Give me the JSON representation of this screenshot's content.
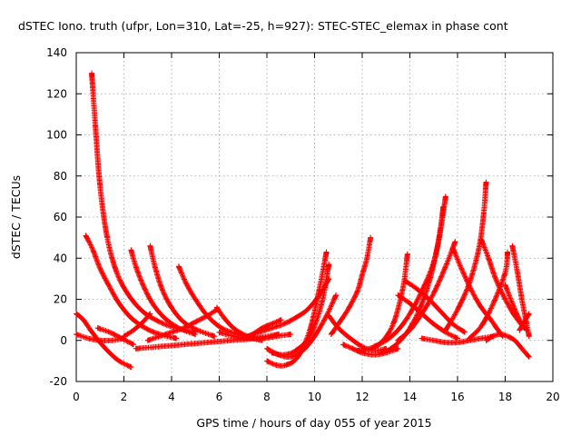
{
  "chart_data": {
    "type": "scatter",
    "title": "dSTEC Iono. truth (ufpr, Lon=310, Lat=-25, h=927): STEC-STEC_elemax in phase cont",
    "xlabel": "GPS time / hours of day 055 of year 2015",
    "ylabel": "dSTEC  / TECUs",
    "xlim": [
      0,
      20
    ],
    "ylim": [
      -20,
      140
    ],
    "xticks": [
      0,
      2,
      4,
      6,
      8,
      10,
      12,
      14,
      16,
      18,
      20
    ],
    "yticks": [
      -20,
      0,
      20,
      40,
      60,
      80,
      100,
      120,
      140
    ],
    "grid": true,
    "marker": "plus",
    "color": "#ff0000",
    "series": [
      {
        "x": [
          0.65,
          0.8,
          1.0,
          1.3,
          1.7,
          2.2,
          2.8,
          3.5,
          4.2,
          5.0
        ],
        "y": [
          130,
          105,
          75,
          50,
          33,
          22,
          14,
          9,
          6,
          4
        ]
      },
      {
        "x": [
          0.4,
          0.7,
          1.0,
          1.4,
          1.8,
          2.3,
          2.9,
          3.5,
          4.2
        ],
        "y": [
          51,
          44,
          35,
          26,
          18,
          11,
          6,
          3,
          1
        ]
      },
      {
        "x": [
          0.0,
          0.3,
          0.6,
          1.0,
          1.4,
          1.8,
          2.3
        ],
        "y": [
          13,
          10,
          5,
          -1,
          -6,
          -10,
          -13
        ]
      },
      {
        "x": [
          0.0,
          0.5,
          1.0,
          1.5,
          2.0
        ],
        "y": [
          3,
          1,
          0,
          0,
          1
        ]
      },
      {
        "x": [
          0.9,
          1.4,
          1.9,
          2.4
        ],
        "y": [
          6,
          4,
          1,
          -2
        ]
      },
      {
        "x": [
          2.3,
          2.5,
          2.8,
          3.2,
          3.7,
          4.3,
          5.0
        ],
        "y": [
          44,
          36,
          27,
          18,
          11,
          6,
          3
        ]
      },
      {
        "x": [
          3.1,
          3.3,
          3.6,
          4.0,
          4.5,
          5.1,
          5.8
        ],
        "y": [
          46,
          36,
          25,
          16,
          9,
          5,
          2
        ]
      },
      {
        "x": [
          4.3,
          4.6,
          5.0,
          5.5,
          6.1,
          6.8,
          7.5
        ],
        "y": [
          36,
          28,
          20,
          12,
          6,
          3,
          1
        ]
      },
      {
        "x": [
          2.0,
          2.4,
          2.8,
          3.1
        ],
        "y": [
          2,
          5,
          9,
          13
        ]
      },
      {
        "x": [
          3.0,
          3.5,
          4.0,
          4.5,
          5.0,
          5.5,
          5.9
        ],
        "y": [
          0,
          2,
          4,
          6,
          9,
          12,
          15
        ]
      },
      {
        "x": [
          5.9,
          6.2,
          6.6,
          7.0,
          7.4,
          7.8
        ],
        "y": [
          16,
          11,
          6,
          3,
          1,
          0
        ]
      },
      {
        "x": [
          2.5,
          3.5,
          4.5,
          5.5,
          6.5,
          7.5,
          8.5
        ],
        "y": [
          -4,
          -3,
          -2,
          -1,
          0,
          1,
          3
        ]
      },
      {
        "x": [
          6.0,
          6.6,
          7.2,
          7.8,
          8.4,
          9.0
        ],
        "y": [
          4,
          2,
          1,
          1,
          2,
          3
        ]
      },
      {
        "x": [
          7.0,
          7.4,
          7.8,
          8.2,
          8.6
        ],
        "y": [
          1,
          3,
          6,
          8,
          10
        ]
      },
      {
        "x": [
          7.2,
          7.7,
          8.2,
          8.7,
          9.2,
          9.7,
          10.2,
          10.6
        ],
        "y": [
          2,
          4,
          6,
          8,
          11,
          15,
          22,
          30
        ]
      },
      {
        "x": [
          8.0,
          8.5,
          9.0,
          9.5,
          10.0,
          10.5,
          10.9
        ],
        "y": [
          -4,
          -7,
          -8,
          -5,
          2,
          12,
          22
        ]
      },
      {
        "x": [
          8.0,
          8.4,
          8.8,
          9.3,
          9.8,
          10.2,
          10.5
        ],
        "y": [
          -10,
          -12,
          -12,
          -8,
          5,
          25,
          43
        ]
      },
      {
        "x": [
          8.2,
          8.7,
          9.2,
          9.8,
          10.3,
          10.6
        ],
        "y": [
          -6,
          -7,
          -5,
          2,
          18,
          37
        ]
      },
      {
        "x": [
          10.7,
          11.0,
          11.4,
          11.8,
          12.0,
          12.2,
          12.35
        ],
        "y": [
          3,
          8,
          15,
          24,
          32,
          40,
          50
        ]
      },
      {
        "x": [
          10.6,
          11.0,
          11.5,
          12.0,
          12.5,
          13.0
        ],
        "y": [
          12,
          6,
          1,
          -3,
          -5,
          -4
        ]
      },
      {
        "x": [
          11.2,
          11.6,
          12.0,
          12.5,
          13.0,
          13.5
        ],
        "y": [
          -2,
          -4,
          -6,
          -7,
          -6,
          -4
        ]
      },
      {
        "x": [
          11.8,
          12.3,
          12.8,
          13.3,
          13.7,
          13.9
        ],
        "y": [
          -5,
          -4,
          -1,
          8,
          25,
          42
        ]
      },
      {
        "x": [
          12.5,
          13.0,
          13.5,
          14.0,
          14.5,
          15.0,
          15.3,
          15.5
        ],
        "y": [
          -3,
          0,
          5,
          13,
          24,
          38,
          55,
          70
        ]
      },
      {
        "x": [
          12.8,
          13.2,
          13.6,
          14.0,
          14.4,
          14.8,
          15.2,
          15.4
        ],
        "y": [
          -6,
          -4,
          0,
          6,
          15,
          28,
          48,
          65
        ]
      },
      {
        "x": [
          13.5,
          14.0,
          14.5,
          15.0,
          15.5,
          15.9
        ],
        "y": [
          0,
          5,
          13,
          23,
          36,
          48
        ]
      },
      {
        "x": [
          13.8,
          14.3,
          14.8,
          15.3,
          15.8,
          16.3
        ],
        "y": [
          29,
          25,
          20,
          14,
          8,
          4
        ]
      },
      {
        "x": [
          13.5,
          14.0,
          14.5,
          15.0,
          15.5,
          16.0
        ],
        "y": [
          22,
          18,
          13,
          8,
          4,
          1
        ]
      },
      {
        "x": [
          14.5,
          15.0,
          15.5,
          16.0,
          16.5,
          17.0,
          17.5
        ],
        "y": [
          1,
          0,
          -1,
          -1,
          0,
          1,
          2
        ]
      },
      {
        "x": [
          15.8,
          16.2,
          16.6,
          17.0,
          17.4,
          17.7,
          17.9
        ],
        "y": [
          45,
          34,
          24,
          16,
          10,
          5,
          2
        ]
      },
      {
        "x": [
          15.5,
          16.0,
          16.5,
          16.9,
          17.1,
          17.2
        ],
        "y": [
          5,
          15,
          28,
          45,
          62,
          77
        ]
      },
      {
        "x": [
          17.0,
          17.3,
          17.6,
          18.0,
          18.4,
          18.8
        ],
        "y": [
          49,
          40,
          30,
          20,
          12,
          6
        ]
      },
      {
        "x": [
          16.5,
          17.0,
          17.5,
          18.0,
          18.1
        ],
        "y": [
          1,
          7,
          18,
          33,
          43
        ]
      },
      {
        "x": [
          17.2,
          17.5,
          17.8,
          18.1,
          18.4,
          18.7,
          19.0
        ],
        "y": [
          0,
          2,
          3,
          2,
          0,
          -4,
          -8
        ]
      },
      {
        "x": [
          18.3,
          18.5,
          18.7,
          18.9,
          19.0
        ],
        "y": [
          46,
          34,
          20,
          8,
          2
        ]
      },
      {
        "x": [
          18.0,
          18.3,
          18.6,
          18.9
        ],
        "y": [
          27,
          18,
          10,
          5
        ]
      },
      {
        "x": [
          18.6,
          18.8,
          19.0
        ],
        "y": [
          5,
          9,
          13
        ]
      }
    ]
  }
}
